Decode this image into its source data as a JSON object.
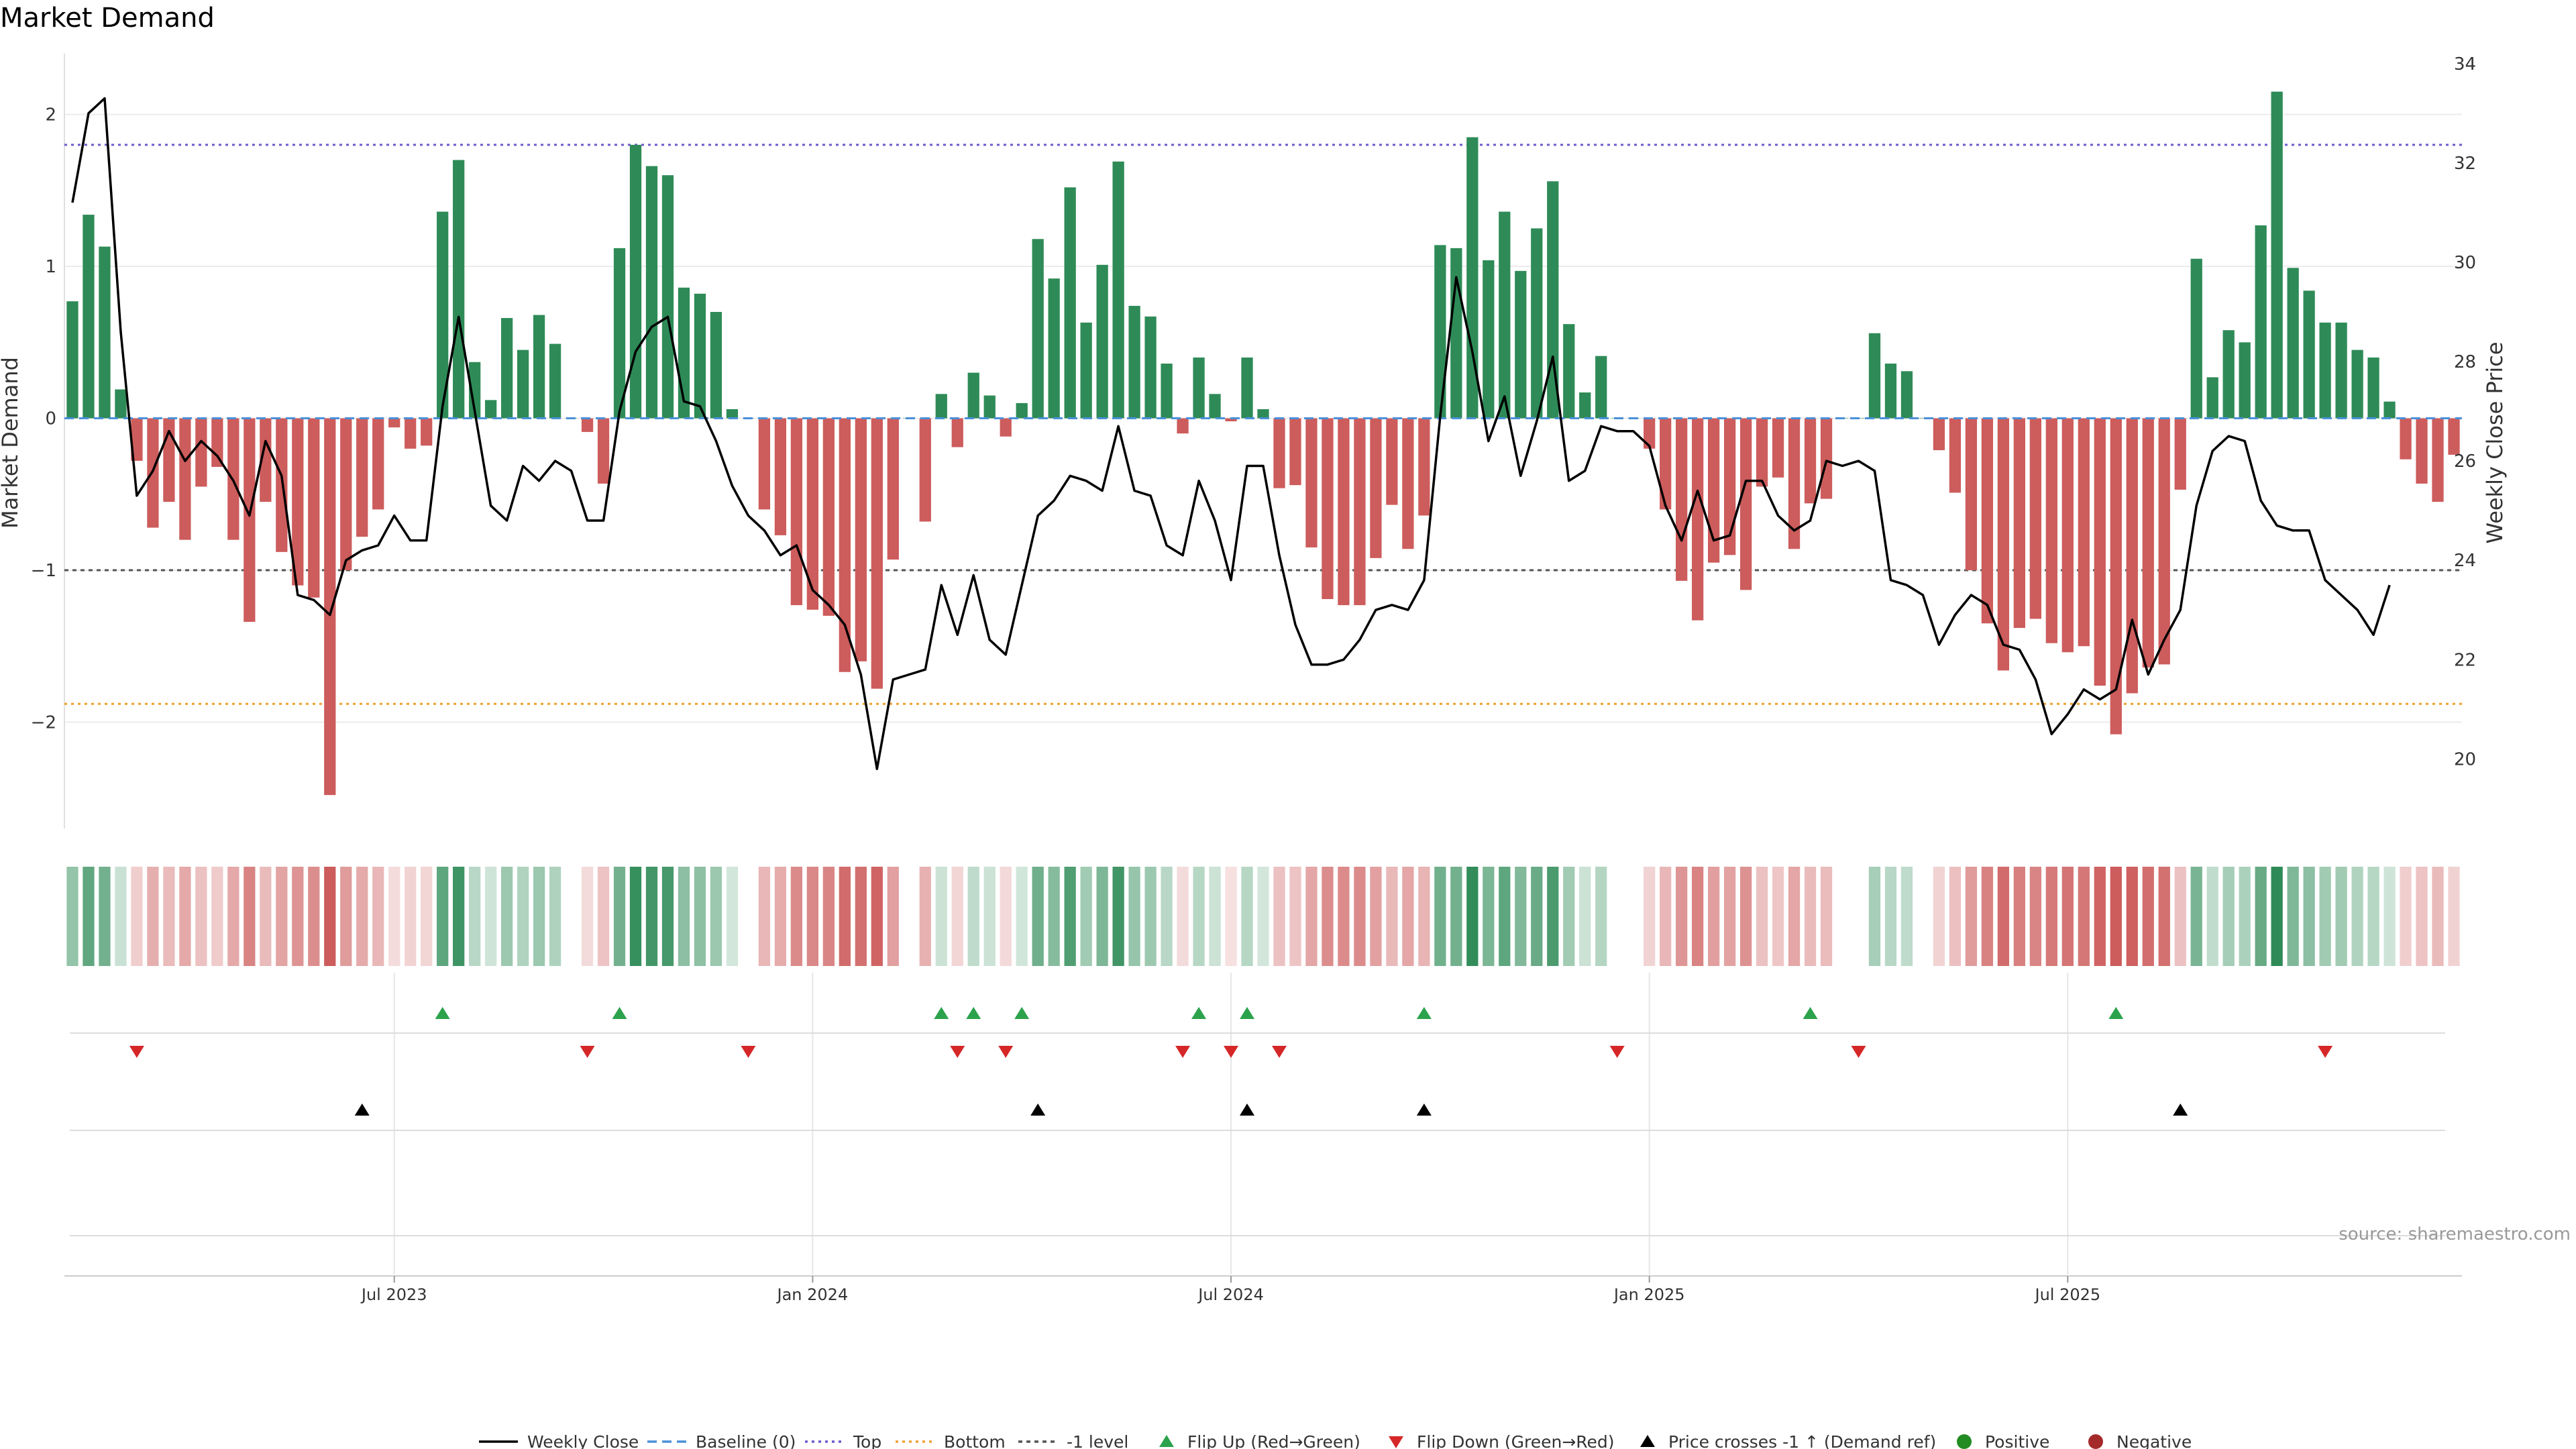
{
  "chart_data": {
    "type": "bar",
    "title": "Market Demand",
    "ylabel_left": "Market Demand",
    "ylabel_right": "Weekly Close Price",
    "source": "source: sharemaestro.com",
    "ylim_left": [
      -2.7,
      2.4
    ],
    "ylim_right": [
      18.6,
      34.2
    ],
    "left_ticks": [
      {
        "value": 2,
        "label": "2"
      },
      {
        "value": 1,
        "label": "1"
      },
      {
        "value": 0,
        "label": "0"
      },
      {
        "value": -1,
        "label": "−1"
      },
      {
        "value": -2,
        "label": "−2"
      }
    ],
    "right_ticks": [
      {
        "value": 34,
        "label": "34"
      },
      {
        "value": 32,
        "label": "32"
      },
      {
        "value": 30,
        "label": "30"
      },
      {
        "value": 28,
        "label": "28"
      },
      {
        "value": 26,
        "label": "26"
      },
      {
        "value": 24,
        "label": "24"
      },
      {
        "value": 22,
        "label": "22"
      },
      {
        "value": 20,
        "label": "20"
      }
    ],
    "levels": {
      "top": 1.8,
      "bottom": -1.88,
      "minus_one": -1,
      "baseline": 0
    },
    "date_ticks": [
      {
        "label": "Jul 2023",
        "index": 20
      },
      {
        "label": "Jan 2024",
        "index": 46
      },
      {
        "label": "Jul 2024",
        "index": 72
      },
      {
        "label": "Jan 2025",
        "index": 98
      },
      {
        "label": "Jul 2025",
        "index": 124
      }
    ],
    "demand": [
      0.77,
      1.34,
      1.13,
      0.19,
      -0.28,
      -0.72,
      -0.55,
      -0.8,
      -0.45,
      -0.32,
      -0.8,
      -1.34,
      -0.55,
      -0.88,
      -1.1,
      -1.18,
      -2.48,
      -1.0,
      -0.78,
      -0.6,
      -0.06,
      -0.2,
      -0.18,
      1.36,
      1.7,
      0.37,
      0.12,
      0.66,
      0.45,
      0.68,
      0.49,
      0.0,
      -0.09,
      -0.43,
      1.12,
      1.8,
      1.66,
      1.6,
      0.86,
      0.82,
      0.7,
      0.06,
      0.0,
      -0.6,
      -0.77,
      -1.23,
      -1.26,
      -1.3,
      -1.67,
      -1.6,
      -1.78,
      -0.93,
      0.0,
      -0.68,
      0.16,
      -0.19,
      0.3,
      0.15,
      -0.12,
      0.1,
      1.18,
      0.92,
      1.52,
      0.63,
      1.01,
      1.69,
      0.74,
      0.67,
      0.36,
      -0.1,
      0.4,
      0.16,
      -0.02,
      0.4,
      0.06,
      -0.46,
      -0.44,
      -0.85,
      -1.19,
      -1.23,
      -1.23,
      -0.92,
      -0.57,
      -0.86,
      -0.64,
      1.14,
      1.12,
      1.85,
      1.04,
      1.36,
      0.97,
      1.25,
      1.56,
      0.62,
      0.17,
      0.41,
      0.0,
      0.0,
      -0.2,
      -0.6,
      -1.07,
      -1.33,
      -0.95,
      -0.9,
      -1.13,
      -0.45,
      -0.39,
      -0.86,
      -0.56,
      -0.53,
      0.0,
      0.0,
      0.56,
      0.36,
      0.31,
      0.0,
      -0.21,
      -0.49,
      -1.0,
      -1.35,
      -1.66,
      -1.38,
      -1.32,
      -1.48,
      -1.54,
      -1.5,
      -1.76,
      -2.08,
      -1.81,
      -1.64,
      -1.62,
      -0.47,
      1.05,
      0.27,
      0.58,
      0.5,
      1.27,
      2.15,
      0.99,
      0.84,
      0.63,
      0.63,
      0.45,
      0.4,
      0.11,
      -0.27,
      -0.43,
      -0.55,
      -0.24
    ],
    "price": [
      31.2,
      33.0,
      33.3,
      28.6,
      25.3,
      25.8,
      26.6,
      26.0,
      26.4,
      26.1,
      25.6,
      24.9,
      26.4,
      25.7,
      23.3,
      23.2,
      22.9,
      24.0,
      24.2,
      24.3,
      24.9,
      24.4,
      24.4,
      27.1,
      28.9,
      27.0,
      25.1,
      24.8,
      25.9,
      25.6,
      26.0,
      25.8,
      24.8,
      24.8,
      27.0,
      28.2,
      28.7,
      28.9,
      27.2,
      27.1,
      26.4,
      25.5,
      24.9,
      24.6,
      24.1,
      24.3,
      23.4,
      23.1,
      22.7,
      21.7,
      19.8,
      21.6,
      21.7,
      21.8,
      23.5,
      22.5,
      23.7,
      22.4,
      22.1,
      23.5,
      24.9,
      25.2,
      25.7,
      25.6,
      25.4,
      26.7,
      25.4,
      25.3,
      24.3,
      24.1,
      25.6,
      24.8,
      23.6,
      25.9,
      25.9,
      24.1,
      22.7,
      21.9,
      21.9,
      22.0,
      22.4,
      23.0,
      23.1,
      23.0,
      23.6,
      26.9,
      29.7,
      28.2,
      26.4,
      27.3,
      25.7,
      26.8,
      28.1,
      25.6,
      25.8,
      26.7,
      26.6,
      26.6,
      26.3,
      25.1,
      24.4,
      25.4,
      24.4,
      24.5,
      25.6,
      25.6,
      24.9,
      24.6,
      24.8,
      26.0,
      25.9,
      26.0,
      25.8,
      23.6,
      23.5,
      23.3,
      22.3,
      22.9,
      23.3,
      23.1,
      22.3,
      22.2,
      21.6,
      20.5,
      20.9,
      21.4,
      21.2,
      21.4,
      22.8,
      21.7,
      22.4,
      23.0,
      25.1,
      26.2,
      26.5,
      26.4,
      25.2,
      24.7,
      24.6,
      24.6,
      23.6,
      23.3,
      23.0,
      22.5,
      23.5
    ],
    "flip_up": [
      23,
      34,
      54,
      56,
      59,
      70,
      73,
      84,
      108,
      127
    ],
    "flip_down": [
      4,
      32,
      42,
      55,
      58,
      69,
      72,
      75,
      96,
      111,
      140
    ],
    "price_cross_up": [
      18,
      60,
      73,
      84,
      131
    ],
    "legend": [
      {
        "label": "Weekly Close",
        "marker": "line-solid"
      },
      {
        "label": "Baseline (0)",
        "marker": "line-dashed"
      },
      {
        "label": "Top",
        "marker": "line-dotted-purple"
      },
      {
        "label": "Bottom",
        "marker": "line-dotted-orange"
      },
      {
        "label": "-1 level",
        "marker": "line-dotted-gray"
      },
      {
        "label": "Flip Up (Red→Green)",
        "marker": "triangle-up-green"
      },
      {
        "label": "Flip Down (Green→Red)",
        "marker": "triangle-down-red"
      },
      {
        "label": "Price crosses -1 ↑ (Demand ref)",
        "marker": "triangle-up-black"
      },
      {
        "label": "Positive",
        "marker": "dot-green"
      },
      {
        "label": "Negative",
        "marker": "dot-red"
      }
    ],
    "colors": {
      "positive": "#2e8b57",
      "negative": "#cd5c5c",
      "price": "#000000",
      "baseline": "#4a90d9",
      "top": "#6a5acd",
      "bottom": "#f0a030",
      "minus_one": "#555555",
      "flip_up": "#2ca24c",
      "flip_down": "#d62728",
      "cross": "#000000",
      "positive_dot": "#228b22",
      "negative_dot": "#a52a2a"
    }
  }
}
